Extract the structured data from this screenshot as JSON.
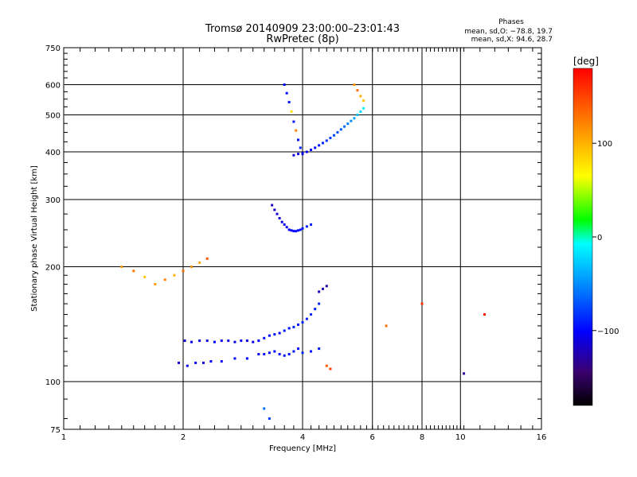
{
  "chart_data": {
    "type": "scatter",
    "title": "Tromsø 20140909 23:00:00–23:01:43",
    "subtitle": "RwPretec (8p)",
    "xlabel": "Frequency [MHz]",
    "ylabel": "Stationary phase Virtual Height [km]",
    "x_scale": "log",
    "y_scale": "log",
    "xlim": [
      1,
      16
    ],
    "ylim": [
      75,
      750
    ],
    "x_ticks": [
      1,
      2,
      4,
      6,
      8,
      10,
      16
    ],
    "x_tick_labels": [
      "1",
      "2",
      "4",
      "6",
      "8",
      "10",
      "16"
    ],
    "y_ticks": [
      75,
      100,
      200,
      300,
      400,
      500,
      600,
      750
    ],
    "y_tick_labels": [
      "75",
      "100",
      "200",
      "300",
      "400",
      "500",
      "600",
      "750"
    ],
    "grid": true,
    "info_box": {
      "heading": "Phases",
      "line1": "mean, sd,O: −78.8, 19.7",
      "line2": "mean, sd,X:  94.6, 28.7"
    },
    "colorbar": {
      "label": "[deg]",
      "range": [
        -180,
        180
      ],
      "ticks": [
        100,
        0,
        -100
      ],
      "tick_labels": [
        "100",
        "0",
        "−100"
      ]
    },
    "series": [
      {
        "x": [
          2.02,
          2.1,
          2.2,
          2.3,
          2.4,
          2.5,
          2.6,
          2.7,
          2.8,
          2.9,
          3.0,
          3.1,
          3.2,
          3.3,
          3.4,
          3.5,
          3.6,
          3.7,
          3.8,
          3.9,
          4.0,
          4.1,
          4.2,
          4.3,
          4.4,
          1.95,
          2.05,
          2.15,
          2.25,
          2.35,
          2.5,
          2.7,
          2.9,
          3.1,
          3.2,
          3.3,
          3.4,
          3.5,
          3.6,
          3.7,
          3.8,
          3.9,
          4.0,
          4.2,
          4.4,
          3.35,
          3.4,
          3.45,
          3.5,
          3.55,
          3.6,
          3.65,
          3.7,
          3.75,
          3.8,
          3.85,
          3.9,
          3.95,
          4.0,
          4.1,
          4.2,
          3.8,
          3.9,
          4.0,
          4.1,
          4.2,
          4.3,
          4.4,
          4.5,
          4.6,
          4.7,
          4.8,
          4.9,
          5.0,
          5.1,
          5.2,
          5.3,
          5.4,
          5.5,
          5.6,
          5.7,
          3.6,
          3.65,
          3.7,
          3.75,
          3.8,
          3.85,
          3.9,
          3.95,
          4.0,
          5.4,
          5.5,
          5.6,
          5.7,
          4.5,
          4.6,
          4.4,
          1.7,
          1.8,
          1.9,
          2.0,
          2.1,
          2.2,
          2.3,
          1.6,
          1.5,
          1.4,
          3.2,
          3.3,
          4.6,
          4.7,
          6.5,
          8.0,
          10.2,
          11.5
        ],
        "y": [
          128,
          127,
          128,
          128,
          127,
          128,
          128,
          127,
          128,
          128,
          127,
          128,
          130,
          132,
          133,
          134,
          136,
          138,
          139,
          141,
          143,
          146,
          150,
          155,
          160,
          112,
          110,
          112,
          112,
          113,
          113,
          115,
          115,
          118,
          118,
          119,
          120,
          118,
          117,
          118,
          120,
          122,
          119,
          120,
          122,
          290,
          282,
          275,
          268,
          262,
          258,
          254,
          250,
          249,
          248,
          248,
          249,
          250,
          252,
          255,
          258,
          392,
          395,
          397,
          400,
          405,
          410,
          416,
          422,
          428,
          435,
          442,
          450,
          458,
          466,
          474,
          482,
          490,
          500,
          510,
          520,
          600,
          570,
          540,
          510,
          480,
          455,
          430,
          410,
          395,
          600,
          580,
          560,
          545,
          175,
          178,
          172,
          180,
          185,
          190,
          195,
          200,
          205,
          210,
          188,
          195,
          200,
          85,
          80,
          110,
          108,
          140,
          160,
          105,
          150
        ],
        "phase_deg": [
          -110,
          -105,
          -108,
          -112,
          -100,
          -104,
          -106,
          -110,
          -102,
          -108,
          -104,
          -100,
          -96,
          -98,
          -94,
          -100,
          -92,
          -96,
          -90,
          -94,
          -88,
          -92,
          -86,
          -90,
          -84,
          -112,
          -108,
          -104,
          -110,
          -100,
          -104,
          -98,
          -102,
          -106,
          -100,
          -104,
          -96,
          -100,
          -94,
          -98,
          -92,
          -96,
          -90,
          -94,
          -92,
          -118,
          -116,
          -114,
          -112,
          -110,
          -108,
          -106,
          -104,
          -102,
          -100,
          -98,
          -96,
          -94,
          -92,
          -90,
          -88,
          -112,
          -110,
          -108,
          -106,
          -100,
          -96,
          -92,
          -88,
          -84,
          -80,
          -76,
          -72,
          -68,
          -62,
          -56,
          -50,
          -40,
          -30,
          -20,
          -10,
          -100,
          -96,
          -92,
          80,
          -90,
          120,
          -94,
          -88,
          -110,
          110,
          130,
          100,
          90,
          -125,
          -130,
          -120,
          110,
          120,
          100,
          130,
          115,
          105,
          140,
          90,
          125,
          110,
          -60,
          -80,
          140,
          150,
          130,
          160,
          -130,
          170
        ]
      }
    ]
  }
}
